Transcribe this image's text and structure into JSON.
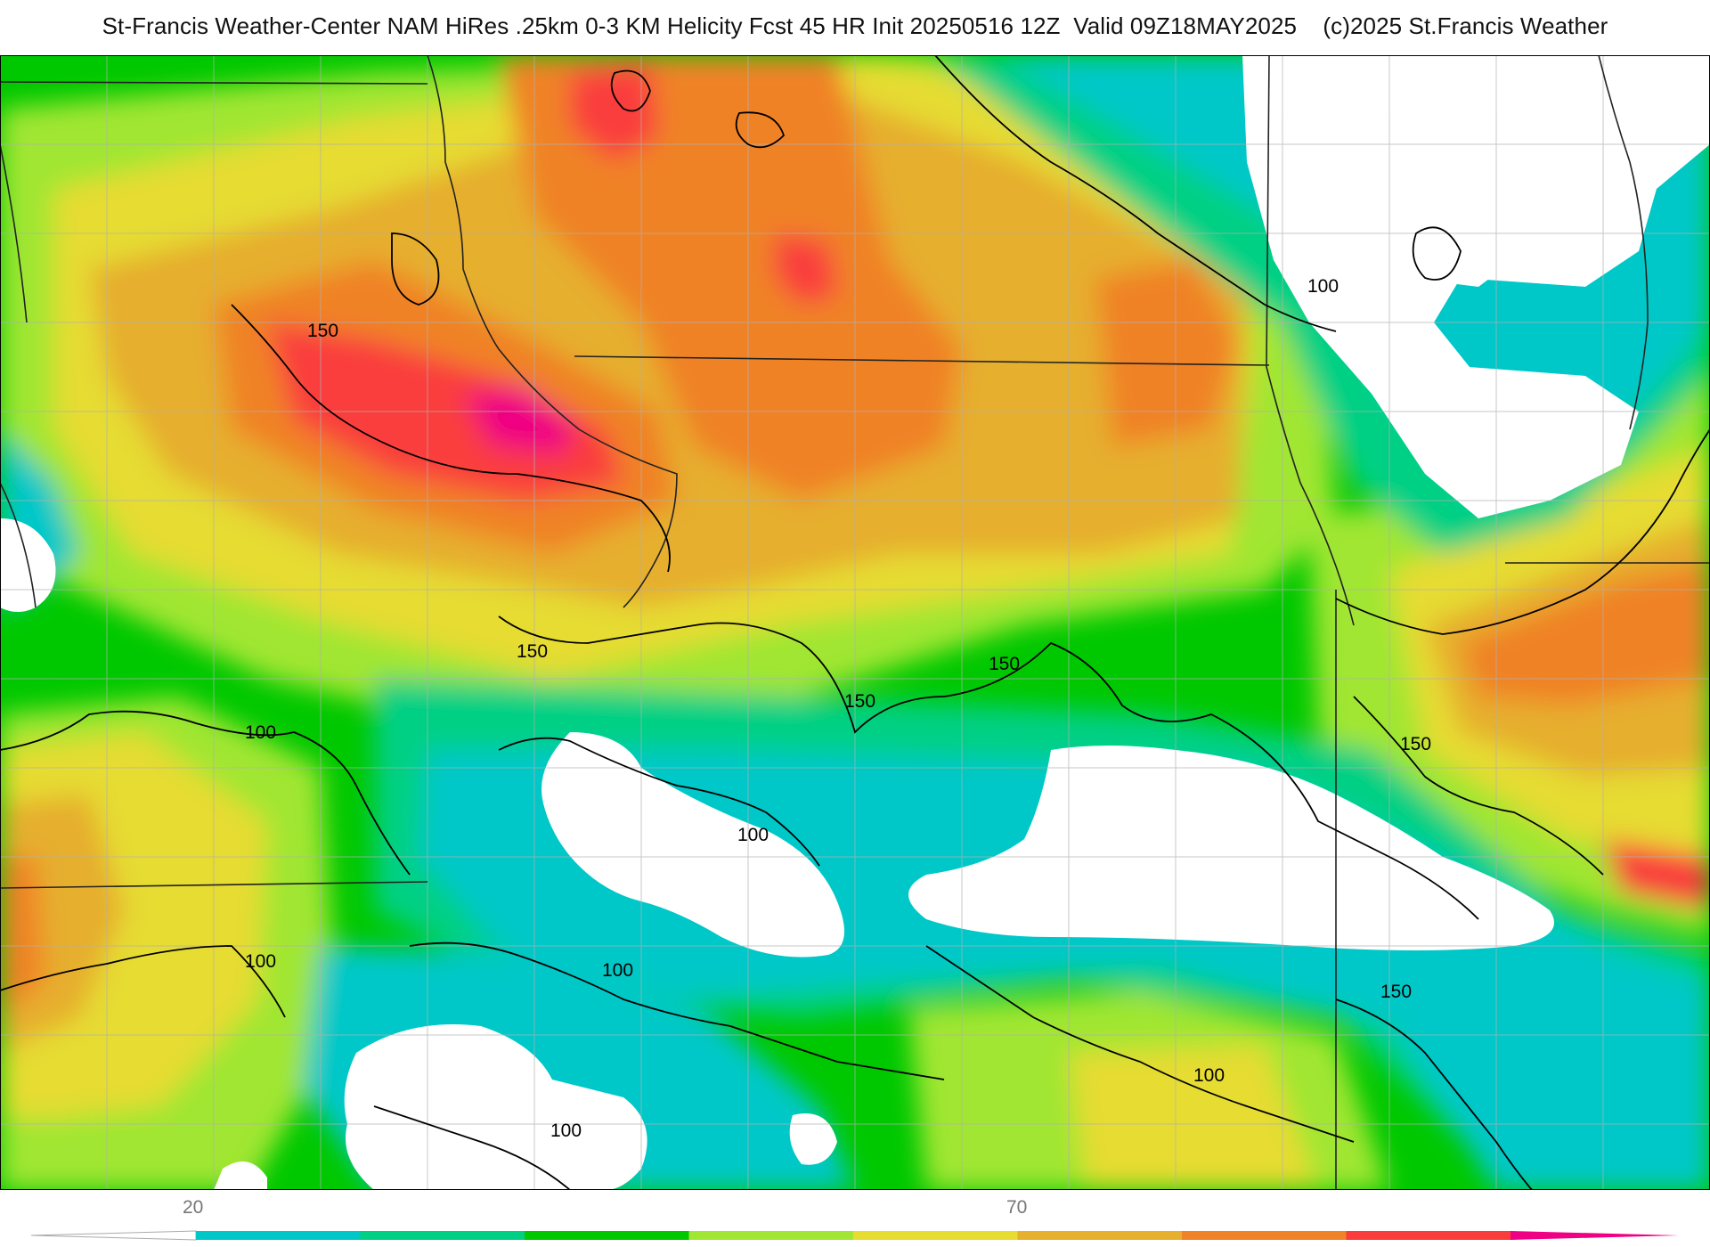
{
  "header": {
    "title": "St-Francis Weather-Center NAM HiRes .25km 0-3 KM Helicity Fcst 45 HR Init 20250516 12Z  Valid 09Z18MAY2025    (c)2025 St.Francis Weather"
  },
  "map": {
    "variable": "0-3 KM Helicity",
    "contour_labels": [
      {
        "id": "c150-nw",
        "text": "150"
      },
      {
        "id": "c150-mid",
        "text": "150"
      },
      {
        "id": "c150-c",
        "text": "150"
      },
      {
        "id": "c150-ce",
        "text": "150"
      },
      {
        "id": "c150-e",
        "text": "150"
      },
      {
        "id": "c150-se",
        "text": "150"
      },
      {
        "id": "c100-ne",
        "text": "100"
      },
      {
        "id": "c100-w",
        "text": "100"
      },
      {
        "id": "c100-c",
        "text": "100"
      },
      {
        "id": "c100-sw",
        "text": "100"
      },
      {
        "id": "c100-s",
        "text": "100"
      },
      {
        "id": "c100-ssw",
        "text": "100"
      },
      {
        "id": "c100-sse",
        "text": "100"
      }
    ]
  },
  "colorbar": {
    "tick_labels": [
      "20",
      "70"
    ],
    "colors": [
      "#00c8c8",
      "#00d084",
      "#00c800",
      "#a0e632",
      "#e6dc32",
      "#e6af2d",
      "#f08228",
      "#fa3c3c",
      "#f00082"
    ]
  }
}
